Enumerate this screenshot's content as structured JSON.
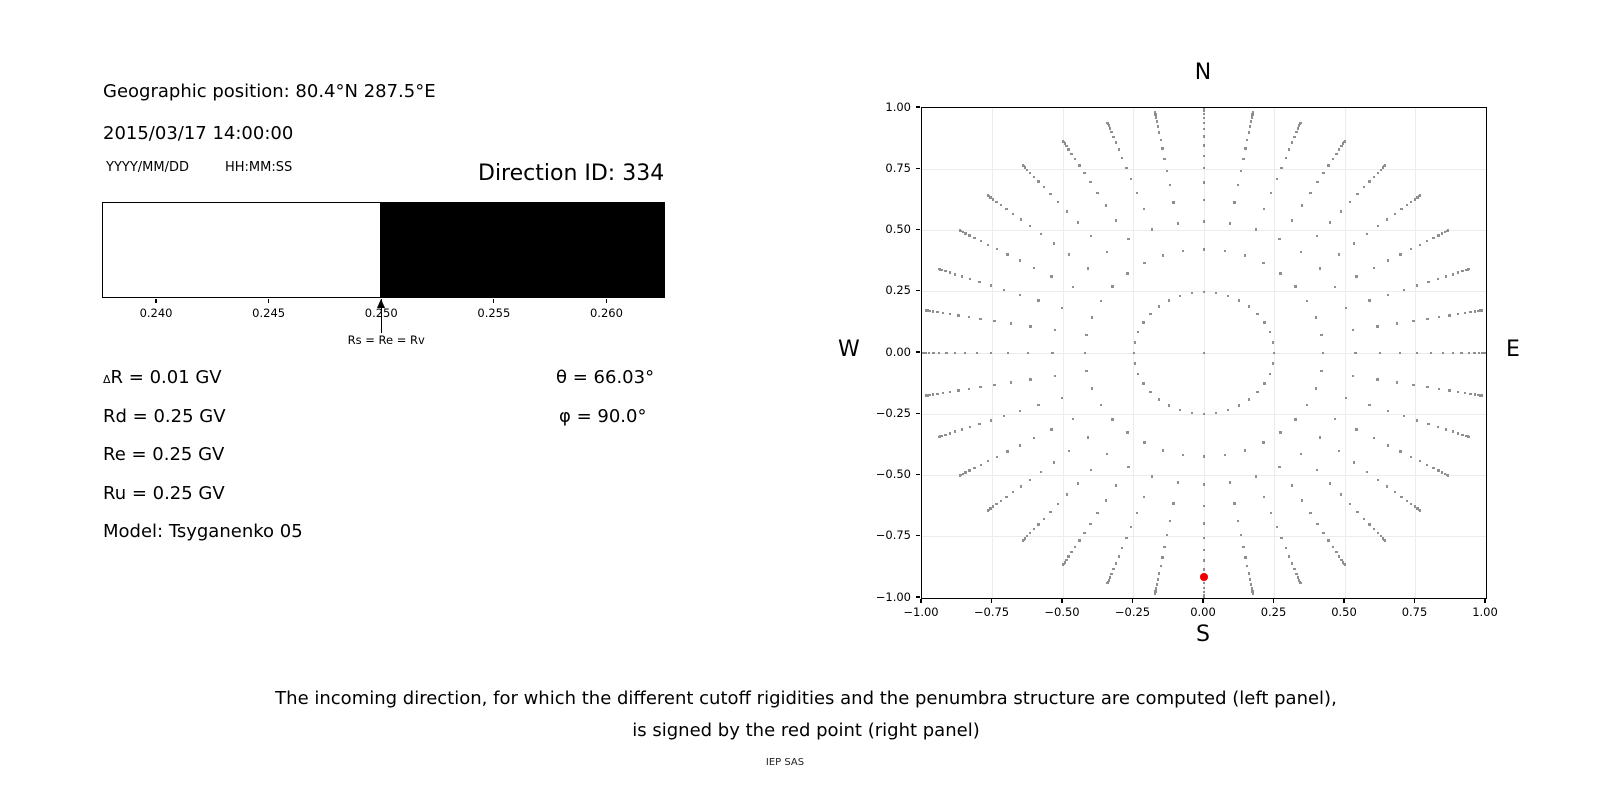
{
  "left_panel": {
    "geo_position": "Geographic position: 80.4°N 287.5°E",
    "datetime": "2015/03/17 14:00:00",
    "date_format_label": "YYYY/MM/DD",
    "time_format_label": "HH:MM:SS",
    "direction_id": "Direction ID: 334",
    "delta_row": {
      "symbol": "Δ",
      "rest": "R = 0.01 GV"
    },
    "rows": [
      "Rd = 0.25 GV",
      "Re = 0.25 GV",
      "Ru = 0.25 GV"
    ],
    "model": "Model: Tsyganenko 05",
    "theta": "θ = 66.03°",
    "phi": "φ = 90.0°"
  },
  "caption": {
    "line1": "The incoming direction, for which the different cutoff rigidities and the penumbra structure are computed (left panel),",
    "line2": "is signed by the red point (right panel)",
    "credit": "IEP SAS"
  },
  "chart_data": [
    {
      "type": "band",
      "description": "penumbra structure band, white = allowed below 0.250 GV, black = forbidden above",
      "xlim": [
        0.2376,
        0.2626
      ],
      "boundary": 0.25,
      "left_region_color": "#ffffff",
      "right_region_color": "#000000",
      "ticks": [
        {
          "v": 0.24,
          "label": "0.240"
        },
        {
          "v": 0.245,
          "label": "0.245"
        },
        {
          "v": 0.25,
          "label": "0.250"
        },
        {
          "v": 0.255,
          "label": "0.255"
        },
        {
          "v": 0.26,
          "label": "0.260"
        }
      ],
      "arrow_x": 0.25,
      "arrow_label": "Rs = Re = Rv"
    },
    {
      "type": "scatter",
      "description": "sky map of computed incoming directions, r = sin(zenith), azimuth every 10 deg",
      "xlim": [
        -1,
        1
      ],
      "ylim": [
        -1,
        1
      ],
      "grid": true,
      "compass": {
        "n": "N",
        "e": "E",
        "s": "S",
        "w": "W"
      },
      "x_ticks": [
        {
          "v": -1.0,
          "label": "−1.00"
        },
        {
          "v": -0.75,
          "label": "−0.75"
        },
        {
          "v": -0.5,
          "label": "−0.50"
        },
        {
          "v": -0.25,
          "label": "−0.25"
        },
        {
          "v": 0.0,
          "label": "0.00"
        },
        {
          "v": 0.25,
          "label": "0.25"
        },
        {
          "v": 0.5,
          "label": "0.50"
        },
        {
          "v": 0.75,
          "label": "0.75"
        },
        {
          "v": 1.0,
          "label": "1.00"
        }
      ],
      "y_ticks": [
        {
          "v": 1.0,
          "label": "1.00"
        },
        {
          "v": 0.75,
          "label": "0.75"
        },
        {
          "v": 0.5,
          "label": "0.50"
        },
        {
          "v": 0.25,
          "label": "0.25"
        },
        {
          "v": 0.0,
          "label": "0.00"
        },
        {
          "v": -0.25,
          "label": "−0.25"
        },
        {
          "v": -0.5,
          "label": "−0.50"
        },
        {
          "v": -0.75,
          "label": "−0.75"
        },
        {
          "v": -1.0,
          "label": "−1.00"
        }
      ],
      "azimuth_step_deg": 10,
      "ring_cos_theta": [
        0.96875,
        0.90625,
        0.84375,
        0.78125,
        0.71875,
        0.65625,
        0.59375,
        0.53125,
        0.46875,
        0.40625,
        0.34375,
        0.28125,
        0.21875,
        0.15625,
        0.09375,
        0.03125
      ],
      "center_dot": true,
      "red_point": {
        "x": 0.0,
        "y": -0.9138
      },
      "dot_color": "#8f8f8f",
      "red_color": "#f00000"
    }
  ]
}
